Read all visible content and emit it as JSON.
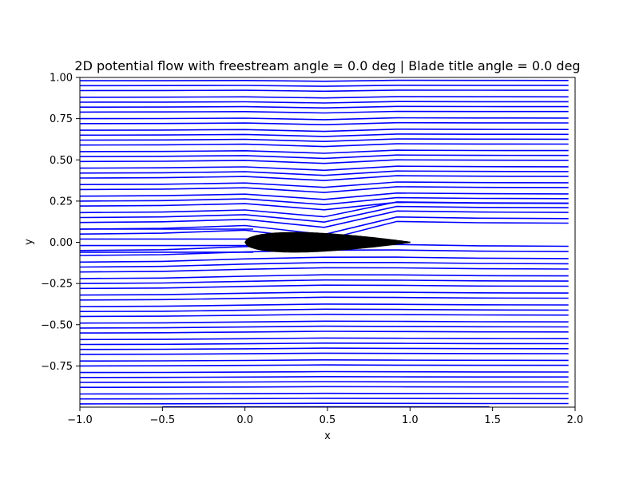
{
  "chart_data": {
    "type": "line",
    "title": "2D potential flow with freestream angle = 0.0 deg | Blade title angle = 0.0 deg",
    "xlabel": "x",
    "ylabel": "y",
    "xlim": [
      -1.0,
      2.0
    ],
    "ylim": [
      -1.0,
      1.0
    ],
    "xticks": [
      "−1.0",
      "−0.5",
      "0.0",
      "0.5",
      "1.0",
      "1.5",
      "2.0"
    ],
    "xtick_values": [
      -1.0,
      -0.5,
      0.0,
      0.5,
      1.0,
      1.5,
      2.0
    ],
    "yticks": [
      "−0.75",
      "−0.50",
      "−0.25",
      "0.00",
      "0.25",
      "0.50",
      "0.75",
      "1.00"
    ],
    "ytick_values": [
      -0.75,
      -0.5,
      -0.25,
      0.0,
      0.25,
      0.5,
      0.75,
      1.0
    ],
    "grid": false,
    "streamline_color": "#0000ff",
    "body_color": "#000000",
    "streamline_x": [
      -1.0,
      -0.5,
      0.0,
      0.48,
      0.92,
      1.42,
      1.96
    ],
    "streamlines_upper_start": [
      0.05,
      0.08,
      0.12,
      0.15,
      0.18,
      0.22,
      0.25,
      0.28,
      0.32,
      0.35,
      0.39,
      0.42,
      0.45,
      0.49,
      0.52,
      0.55,
      0.59,
      0.62,
      0.65,
      0.68,
      0.72,
      0.75,
      0.79,
      0.82,
      0.85,
      0.88,
      0.92,
      0.95,
      0.98
    ],
    "streamlines_lower_start": [
      -0.05,
      -0.08,
      -0.12,
      -0.15,
      -0.18,
      -0.22,
      -0.25,
      -0.28,
      -0.32,
      -0.35,
      -0.39,
      -0.42,
      -0.45,
      -0.49,
      -0.52,
      -0.55,
      -0.59,
      -0.62,
      -0.65,
      -0.68,
      -0.72,
      -0.75,
      -0.79,
      -0.82,
      -0.85,
      -0.88,
      -0.92,
      -0.95,
      -0.98
    ],
    "short_streamlines": [
      {
        "x": [
          -1.0,
          0.05
        ],
        "y": [
          0.02,
          0.02
        ]
      },
      {
        "x": [
          -1.0,
          0.05
        ],
        "y": [
          -0.02,
          -0.02
        ]
      },
      {
        "x": [
          -1.0,
          0.05
        ],
        "y": [
          0.08,
          0.08
        ]
      },
      {
        "x": [
          -1.0,
          0.05
        ],
        "y": [
          -0.06,
          -0.06
        ]
      }
    ],
    "bottom_streamline": {
      "x": [
        -0.5,
        1.48
      ],
      "y": [
        -0.998,
        -0.998
      ]
    },
    "airfoil": {
      "chord_start": 0.0,
      "chord_end": 1.0,
      "max_thickness": 0.12,
      "max_thickness_x": 0.37
    }
  }
}
